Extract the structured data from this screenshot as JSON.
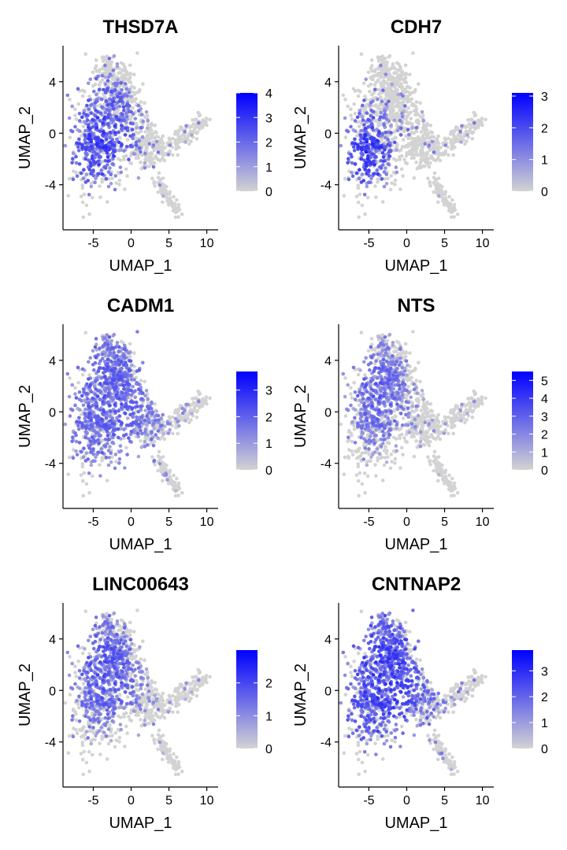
{
  "colors": {
    "low": "#d3d3d3",
    "high": "#0000ff",
    "axis": "#000000",
    "background": "#ffffff"
  },
  "chart_data": [
    {
      "type": "scatter",
      "title": "THSD7A",
      "xlabel": "UMAP_1",
      "ylabel": "UMAP_2",
      "xticks": [
        "-5",
        "0",
        "5",
        "10"
      ],
      "yticks": [
        "-4",
        "0",
        "4"
      ],
      "xlim": [
        -9,
        11.5
      ],
      "ylim": [
        -7.5,
        6.8
      ],
      "colorbar": {
        "min": 0,
        "max": 4,
        "ticks": [
          "0",
          "1",
          "2",
          "3",
          "4"
        ]
      },
      "expression_peak": {
        "x": -4.0,
        "y": -0.5,
        "spread": 3.0,
        "level": 0.75
      }
    },
    {
      "type": "scatter",
      "title": "CDH7",
      "xlabel": "UMAP_1",
      "ylabel": "UMAP_2",
      "xticks": [
        "-5",
        "0",
        "5",
        "10"
      ],
      "yticks": [
        "-4",
        "0",
        "4"
      ],
      "xlim": [
        -9,
        11.5
      ],
      "ylim": [
        -7.5,
        6.8
      ],
      "colorbar": {
        "min": 0,
        "max": 3.1,
        "ticks": [
          "0",
          "1",
          "2",
          "3"
        ]
      },
      "expression_peak": {
        "x": -5.0,
        "y": -1.5,
        "spread": 2.2,
        "level": 0.8
      }
    },
    {
      "type": "scatter",
      "title": "CADM1",
      "xlabel": "UMAP_1",
      "ylabel": "UMAP_2",
      "xticks": [
        "-5",
        "0",
        "5",
        "10"
      ],
      "yticks": [
        "-4",
        "0",
        "4"
      ],
      "xlim": [
        -9,
        11.5
      ],
      "ylim": [
        -7.5,
        6.8
      ],
      "colorbar": {
        "min": 0,
        "max": 3.7,
        "ticks": [
          "0",
          "1",
          "2",
          "3"
        ]
      },
      "expression_peak": {
        "x": -3.0,
        "y": 1.0,
        "spread": 5.0,
        "level": 0.6
      }
    },
    {
      "type": "scatter",
      "title": "NTS",
      "xlabel": "UMAP_1",
      "ylabel": "UMAP_2",
      "xticks": [
        "-5",
        "0",
        "5",
        "10"
      ],
      "yticks": [
        "-4",
        "0",
        "4"
      ],
      "xlim": [
        -9,
        11.5
      ],
      "ylim": [
        -7.5,
        6.8
      ],
      "colorbar": {
        "min": 0,
        "max": 5.5,
        "ticks": [
          "0",
          "1",
          "2",
          "3",
          "4",
          "5"
        ]
      },
      "expression_peak": {
        "x": -4.0,
        "y": 1.5,
        "spread": 2.8,
        "level": 0.6
      }
    },
    {
      "type": "scatter",
      "title": "LINC00643",
      "xlabel": "UMAP_1",
      "ylabel": "UMAP_2",
      "xticks": [
        "-5",
        "0",
        "5",
        "10"
      ],
      "yticks": [
        "-4",
        "0",
        "4"
      ],
      "xlim": [
        -9,
        11.5
      ],
      "ylim": [
        -7.5,
        6.8
      ],
      "colorbar": {
        "min": 0,
        "max": 3.0,
        "ticks": [
          "0",
          "1",
          "2"
        ]
      },
      "expression_peak": {
        "x": -3.5,
        "y": 1.5,
        "spread": 3.2,
        "level": 0.65
      }
    },
    {
      "type": "scatter",
      "title": "CNTNAP2",
      "xlabel": "UMAP_1",
      "ylabel": "UMAP_2",
      "xticks": [
        "-5",
        "0",
        "5",
        "10"
      ],
      "yticks": [
        "-4",
        "0",
        "4"
      ],
      "xlim": [
        -9,
        11.5
      ],
      "ylim": [
        -7.5,
        6.8
      ],
      "colorbar": {
        "min": 0,
        "max": 3.8,
        "ticks": [
          "0",
          "1",
          "2",
          "3"
        ]
      },
      "expression_peak": {
        "x": -3.0,
        "y": 1.0,
        "spread": 4.5,
        "level": 0.75
      }
    }
  ]
}
